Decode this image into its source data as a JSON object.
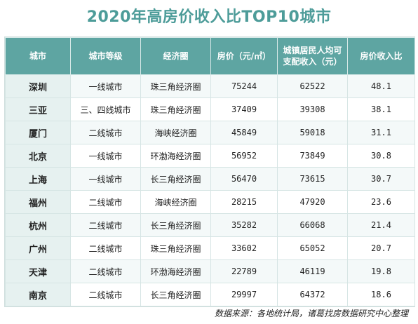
{
  "title": "2020年高房价收入比TOP10城市",
  "source": "数据来源：各地统计局，诸葛找房数据研究中心整理",
  "chart_data": {
    "type": "table",
    "columns": [
      "城市",
      "城市等级",
      "经济圈",
      "房价（元/㎡）",
      "城镇居民人均可支配收入（元）",
      "房价收入比"
    ],
    "rows": [
      [
        "深圳",
        "一线城市",
        "珠三角经济圈",
        "75244",
        "62522",
        "48.1"
      ],
      [
        "三亚",
        "三、四线城市",
        "珠三角经济圈",
        "37409",
        "39308",
        "38.1"
      ],
      [
        "厦门",
        "二线城市",
        "海峡经济圈",
        "45849",
        "59018",
        "31.1"
      ],
      [
        "北京",
        "一线城市",
        "环渤海经济圈",
        "56952",
        "73849",
        "30.8"
      ],
      [
        "上海",
        "一线城市",
        "长三角经济圈",
        "56470",
        "73615",
        "30.7"
      ],
      [
        "福州",
        "二线城市",
        "海峡经济圈",
        "28215",
        "47920",
        "23.6"
      ],
      [
        "杭州",
        "二线城市",
        "长三角经济圈",
        "35282",
        "66068",
        "21.4"
      ],
      [
        "广州",
        "二线城市",
        "珠三角经济圈",
        "33602",
        "65052",
        "20.7"
      ],
      [
        "天津",
        "二线城市",
        "环渤海经济圈",
        "22789",
        "46119",
        "19.8"
      ],
      [
        "南京",
        "二线城市",
        "长三角经济圈",
        "29997",
        "64372",
        "18.6"
      ]
    ]
  }
}
